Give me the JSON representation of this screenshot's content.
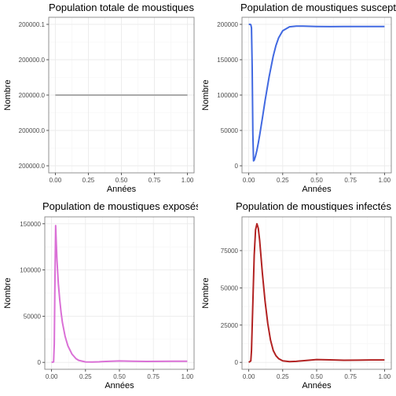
{
  "chart_data": [
    {
      "type": "line",
      "title": "Population totale de moustiques",
      "xlabel": "Années",
      "ylabel": "Nombre",
      "xlim": [
        0,
        1
      ],
      "ylim": [
        199999.9,
        200000.1
      ],
      "x_ticks": [
        0,
        0.25,
        0.5,
        0.75,
        1
      ],
      "x_tick_labels": [
        "0.00",
        "0.25",
        "0.50",
        "0.75",
        "1.00"
      ],
      "y_ticks": [
        199999.9,
        199999.95,
        200000,
        200000.05,
        200000.1
      ],
      "y_tick_labels": [
        "200000.0",
        "200000.0",
        "200000.0",
        "200000.0",
        "200000.1"
      ],
      "grid": true,
      "series": [
        {
          "color": "#aaaaaa",
          "x": [
            0,
            1
          ],
          "y": [
            200000,
            200000
          ]
        }
      ]
    },
    {
      "type": "line",
      "title": "Population de moustiques susceptibles",
      "xlabel": "Années",
      "ylabel": "Nombre",
      "xlim": [
        0,
        1
      ],
      "ylim": [
        0,
        200000
      ],
      "x_ticks": [
        0,
        0.25,
        0.5,
        0.75,
        1
      ],
      "x_tick_labels": [
        "0.00",
        "0.25",
        "0.50",
        "0.75",
        "1.00"
      ],
      "y_ticks": [
        0,
        50000,
        100000,
        150000,
        200000
      ],
      "y_tick_labels": [
        "0",
        "50000",
        "100000",
        "150000",
        "200000"
      ],
      "grid": true,
      "series": [
        {
          "color": "#4169e1",
          "x": [
            0,
            0.01,
            0.015,
            0.02,
            0.025,
            0.03,
            0.035,
            0.04,
            0.05,
            0.06,
            0.07,
            0.08,
            0.1,
            0.12,
            0.15,
            0.18,
            0.2,
            0.22,
            0.25,
            0.3,
            0.35,
            0.4,
            0.5,
            0.6,
            0.7,
            0.8,
            0.9,
            1.0
          ],
          "y": [
            200000,
            200000,
            199500,
            195000,
            140000,
            45000,
            7000,
            8000,
            14000,
            22000,
            32000,
            43000,
            67000,
            92000,
            126000,
            155000,
            170000,
            181000,
            191000,
            196500,
            197500,
            197500,
            197000,
            196800,
            196900,
            196900,
            196900,
            196900
          ]
        }
      ]
    },
    {
      "type": "line",
      "title": "Population de moustiques exposés",
      "xlabel": "Années",
      "ylabel": "Nombre",
      "xlim": [
        0,
        1
      ],
      "ylim": [
        0,
        150000
      ],
      "x_ticks": [
        0,
        0.25,
        0.5,
        0.75,
        1
      ],
      "x_tick_labels": [
        "0.00",
        "0.25",
        "0.50",
        "0.75",
        "1.00"
      ],
      "y_ticks": [
        0,
        50000,
        100000,
        150000
      ],
      "y_tick_labels": [
        "0",
        "50000",
        "100000",
        "150000"
      ],
      "grid": true,
      "series": [
        {
          "color": "#da70d6",
          "x": [
            0,
            0.015,
            0.02,
            0.025,
            0.03,
            0.035,
            0.04,
            0.05,
            0.06,
            0.07,
            0.08,
            0.1,
            0.12,
            0.15,
            0.18,
            0.2,
            0.25,
            0.3,
            0.35,
            0.4,
            0.5,
            0.6,
            0.7,
            0.8,
            0.9,
            1.0
          ],
          "y": [
            0,
            500,
            20000,
            90000,
            148000,
            128000,
            110000,
            85000,
            68000,
            54000,
            43000,
            28000,
            18000,
            9000,
            4000,
            2200,
            500,
            400,
            600,
            1000,
            1500,
            1200,
            1000,
            1100,
            1200,
            1200
          ]
        }
      ]
    },
    {
      "type": "line",
      "title": "Population de moustiques infectés",
      "xlabel": "Années",
      "ylabel": "Nombre",
      "xlim": [
        0,
        1
      ],
      "ylim": [
        0,
        93000
      ],
      "x_ticks": [
        0,
        0.25,
        0.5,
        0.75,
        1
      ],
      "x_tick_labels": [
        "0.00",
        "0.25",
        "0.50",
        "0.75",
        "1.00"
      ],
      "y_ticks": [
        0,
        25000,
        50000,
        75000
      ],
      "y_tick_labels": [
        "0",
        "25000",
        "50000",
        "75000"
      ],
      "grid": true,
      "series": [
        {
          "color": "#b22222",
          "x": [
            0,
            0.015,
            0.02,
            0.03,
            0.04,
            0.05,
            0.06,
            0.07,
            0.08,
            0.09,
            0.1,
            0.12,
            0.14,
            0.16,
            0.18,
            0.2,
            0.22,
            0.25,
            0.3,
            0.35,
            0.4,
            0.5,
            0.6,
            0.7,
            0.8,
            0.9,
            1.0
          ],
          "y": [
            0,
            1000,
            8000,
            40000,
            72000,
            89000,
            93000,
            90000,
            82000,
            71000,
            60000,
            41000,
            26000,
            15000,
            8000,
            4500,
            2500,
            1000,
            500,
            700,
            1100,
            1900,
            1700,
            1400,
            1500,
            1600,
            1600
          ]
        }
      ]
    }
  ]
}
